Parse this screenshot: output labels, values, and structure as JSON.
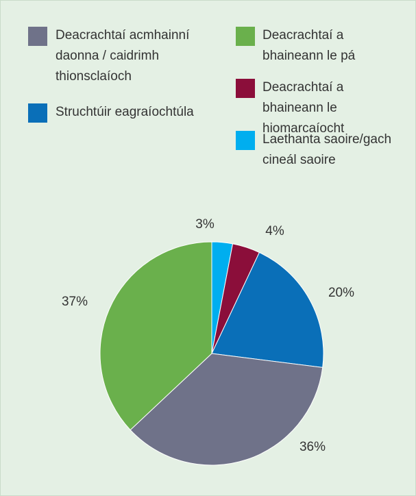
{
  "chart_data": {
    "type": "pie",
    "categories": [
      "Laethanta saoire/gach cineál saoire",
      "Deacrachtaí a bhaineann le hiomarcaíocht",
      "Struchtúir eagraíochtúla",
      "Deacrachtaí acmhainní daonna / caidrimh thionsclaíoch",
      "Deacrachtaí a bhaineann le pá"
    ],
    "values": [
      3,
      4,
      20,
      36,
      37
    ],
    "value_labels": [
      "3%",
      "4%",
      "20%",
      "36%",
      "37%"
    ],
    "colors": [
      "#00aeef",
      "#8b0e3a",
      "#0a6fb8",
      "#6f7289",
      "#6ab04c"
    ]
  }
}
